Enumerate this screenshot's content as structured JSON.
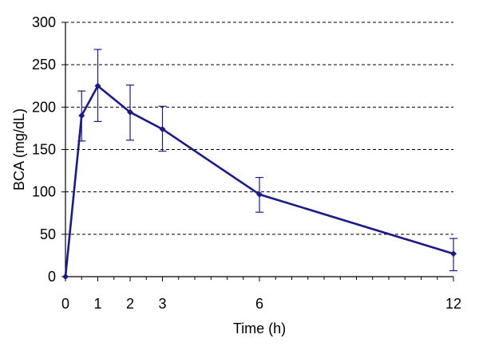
{
  "chart_data": {
    "type": "line",
    "xlabel": "Time (h)",
    "ylabel": "BCA (mg/dL)",
    "xlim": [
      0,
      12
    ],
    "ylim": [
      0,
      300
    ],
    "xticks": [
      0,
      1,
      2,
      3,
      6,
      12
    ],
    "xminor_ticks": [
      0.5,
      1.5,
      2.5,
      3.5,
      4,
      4.5,
      5,
      5.5,
      6.5,
      7,
      7.5,
      8,
      8.5,
      9,
      9.5,
      10,
      10.5,
      11,
      11.5
    ],
    "yticks": [
      0,
      50,
      100,
      150,
      200,
      250,
      300
    ],
    "grid": "horizontal-dashed",
    "series": [
      {
        "color": "#1a1a8c",
        "x": [
          0,
          0.5,
          1,
          2,
          3,
          6,
          12
        ],
        "y": [
          0,
          190,
          225,
          194,
          174,
          97,
          27
        ],
        "err_low": [
          0,
          160,
          183,
          161,
          148,
          76,
          7
        ],
        "err_high": [
          0,
          219,
          268,
          226,
          201,
          117,
          45
        ]
      }
    ]
  }
}
